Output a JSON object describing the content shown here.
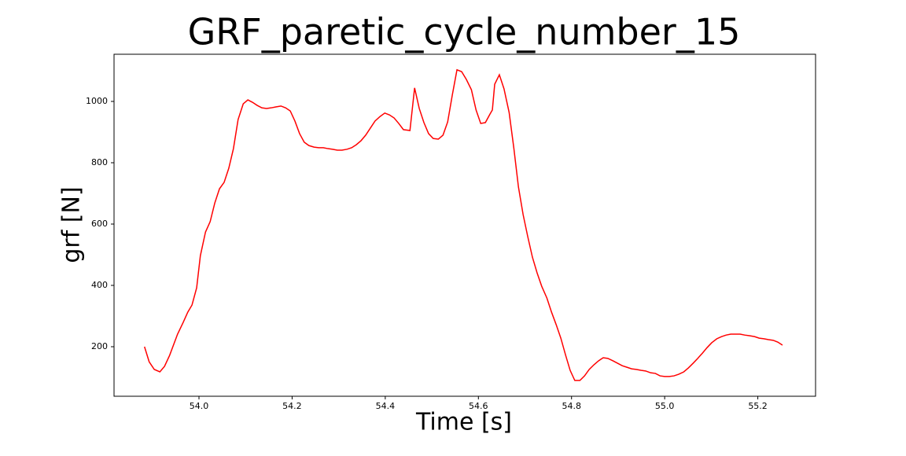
{
  "chart_data": {
    "type": "line",
    "title": "GRF_paretic_cycle_number_15",
    "x_label": "Time [s]",
    "y_label": "grf [N]",
    "color": "#ff0000",
    "x": [
      53.883,
      53.893,
      53.904,
      53.916,
      53.926,
      53.937,
      53.954,
      53.966,
      53.976,
      53.985,
      53.995,
      54.003,
      54.014,
      54.024,
      54.034,
      54.044,
      54.054,
      54.064,
      54.074,
      54.084,
      54.095,
      54.105,
      54.115,
      54.125,
      54.135,
      54.145,
      54.155,
      54.165,
      54.176,
      54.186,
      54.196,
      54.206,
      54.216,
      54.226,
      54.236,
      54.247,
      54.257,
      54.267,
      54.277,
      54.287,
      54.297,
      54.307,
      54.318,
      54.328,
      54.338,
      54.348,
      54.358,
      54.368,
      54.378,
      54.389,
      54.399,
      54.409,
      54.419,
      54.429,
      54.439,
      54.453,
      54.463,
      54.473,
      54.483,
      54.493,
      54.503,
      54.514,
      54.524,
      54.534,
      54.544,
      54.554,
      54.564,
      54.574,
      54.585,
      54.595,
      54.605,
      54.615,
      54.625,
      54.63,
      54.635,
      54.645,
      54.655,
      54.666,
      54.676,
      54.686,
      54.696,
      54.706,
      54.716,
      54.726,
      54.736,
      54.747,
      54.757,
      54.767,
      54.777,
      54.787,
      54.797,
      54.807,
      54.818,
      54.828,
      54.838,
      54.848,
      54.858,
      54.868,
      54.878,
      54.889,
      54.899,
      54.909,
      54.919,
      54.929,
      54.939,
      54.949,
      54.959,
      54.97,
      54.98,
      54.99,
      55.0,
      55.01,
      55.02,
      55.03,
      55.041,
      55.051,
      55.061,
      55.071,
      55.081,
      55.091,
      55.101,
      55.112,
      55.122,
      55.132,
      55.142,
      55.152,
      55.162,
      55.172,
      55.182,
      55.193,
      55.203,
      55.213,
      55.223,
      55.233,
      55.243,
      55.253
    ],
    "values": [
      200,
      151,
      126,
      118,
      136,
      172,
      241,
      279,
      313,
      336,
      392,
      497,
      574,
      608,
      669,
      715,
      736,
      782,
      846,
      941,
      992,
      1005,
      997,
      987,
      979,
      977,
      979,
      982,
      985,
      979,
      969,
      936,
      895,
      867,
      856,
      851,
      849,
      849,
      846,
      844,
      841,
      841,
      844,
      849,
      859,
      872,
      890,
      913,
      936,
      951,
      962,
      956,
      946,
      928,
      908,
      905,
      1044,
      977,
      931,
      895,
      879,
      877,
      890,
      933,
      1021,
      1103,
      1097,
      1072,
      1038,
      972,
      928,
      931,
      959,
      972,
      1056,
      1087,
      1041,
      964,
      849,
      721,
      631,
      559,
      492,
      441,
      397,
      359,
      313,
      272,
      228,
      174,
      123,
      90,
      90,
      105,
      126,
      141,
      154,
      164,
      162,
      154,
      146,
      138,
      133,
      128,
      126,
      123,
      121,
      115,
      113,
      105,
      103,
      103,
      105,
      110,
      118,
      131,
      146,
      162,
      179,
      197,
      213,
      226,
      233,
      238,
      241,
      241,
      241,
      238,
      236,
      233,
      228,
      226,
      223,
      221,
      215,
      205
    ],
    "xlim": [
      53.8176,
      55.324
    ],
    "ylim": [
      38.5,
      1153.8
    ],
    "xticks": [
      {
        "value": 54,
        "label": "54.0"
      },
      54.2,
      54.4,
      54.6,
      54.8,
      {
        "value": 55,
        "label": "55.0"
      },
      55.2
    ],
    "yticks": [
      200,
      400,
      600,
      800,
      1000
    ]
  }
}
